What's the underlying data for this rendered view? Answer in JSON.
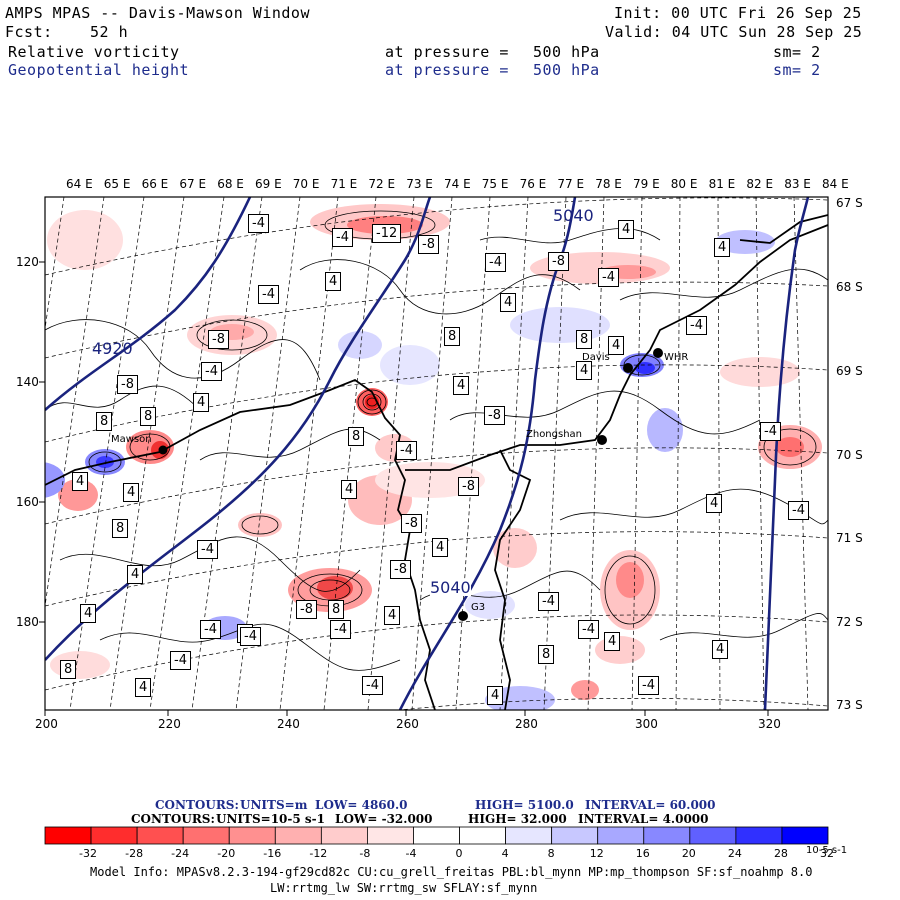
{
  "header": {
    "title": "AMPS MPAS -- Davis-Mawson Window",
    "fcst_label": "Fcst:",
    "fcst_value": "52 h",
    "init": "Init: 00 UTC Fri 26 Sep 25",
    "valid": "Valid: 04 UTC Sun 28 Sep 25",
    "field1": {
      "name": "Relative vorticity",
      "pressure_label": "at pressure =",
      "pressure": "500 hPa",
      "sm": "sm= 2"
    },
    "field2": {
      "name": "Geopotential height",
      "pressure_label": "at pressure =",
      "pressure": "500 hPa",
      "sm": "sm= 2"
    }
  },
  "map": {
    "lon_labels": [
      "64 E",
      "65 E",
      "66 E",
      "67 E",
      "68 E",
      "69 E",
      "70 E",
      "71 E",
      "72 E",
      "73 E",
      "74 E",
      "75 E",
      "76 E",
      "77 E",
      "78 E",
      "79 E",
      "80 E",
      "81 E",
      "82 E",
      "83 E",
      "84 E"
    ],
    "lat_labels": [
      "67 S",
      "68 S",
      "69 S",
      "70 S",
      "71 S",
      "72 S",
      "73 S"
    ],
    "x_ticks": [
      "200",
      "220",
      "240",
      "260",
      "280",
      "300",
      "320"
    ],
    "y_ticks": [
      "120",
      "140",
      "160",
      "180"
    ],
    "height_contour_labels": [
      "4920",
      "5040",
      "5040"
    ],
    "stations": [
      {
        "name": "Mawson"
      },
      {
        "name": "Davis"
      },
      {
        "name": "WHR"
      },
      {
        "name": "Zhongshan"
      },
      {
        "name": "G3"
      }
    ],
    "vorticity_labels": [
      "-4",
      "-12",
      "-8",
      "-4",
      "4",
      "-4",
      "-8",
      "4",
      "-4",
      "4",
      "-4",
      "8",
      "8",
      "4",
      "-8",
      "4",
      "-4",
      "4",
      "4",
      "-4",
      "8",
      "-8",
      "8",
      "-8",
      "8",
      "4",
      "-4",
      "4",
      "-8",
      "-4",
      "4",
      "4",
      "8",
      "-4",
      "-8",
      "4",
      "4",
      "4",
      "-8",
      "-4",
      "8",
      "4",
      "-4",
      "4",
      "-4",
      "-4",
      "4",
      "-4",
      "4",
      "4",
      "4",
      "4",
      "-4",
      "-4",
      "8",
      "8",
      "-4",
      "-4",
      "-8"
    ]
  },
  "contour_info": {
    "line1": {
      "label": "CONTOURS:",
      "units": "UNITS=m",
      "low": "LOW= 4860.0",
      "high": "HIGH= 5100.0",
      "interval": "INTERVAL= 60.000"
    },
    "line2": {
      "label": "CONTOURS:",
      "units": "UNITS=10-5 s-1",
      "low": "LOW= -32.000",
      "high": "HIGH= 32.000",
      "interval": "INTERVAL= 4.0000"
    }
  },
  "colorbar": {
    "colors": [
      "#ff0000",
      "#ff2d2d",
      "#ff5050",
      "#ff7070",
      "#ff9090",
      "#ffb0b0",
      "#ffcccc",
      "#ffe6e6",
      "#ffffff",
      "#ffffff",
      "#e6e6ff",
      "#c8c8ff",
      "#a8a8ff",
      "#8888ff",
      "#6060ff",
      "#3030ff",
      "#0000ff"
    ],
    "labels": [
      "-32",
      "-28",
      "-24",
      "-20",
      "-16",
      "-12",
      "-8",
      "-4",
      "0",
      "4",
      "8",
      "12",
      "16",
      "20",
      "24",
      "28",
      "32"
    ],
    "unit": "10-5 s-1"
  },
  "model_info": {
    "line1": "Model Info: MPASv8.2.3-194-gf29cd82c CU:cu_grell_freitas PBL:bl_mynn MP:mp_thompson SF:sf_noahmp 8.0",
    "line2": "LW:rrtmg_lw SW:rrtmg_sw SFLAY:sf_mynn"
  }
}
